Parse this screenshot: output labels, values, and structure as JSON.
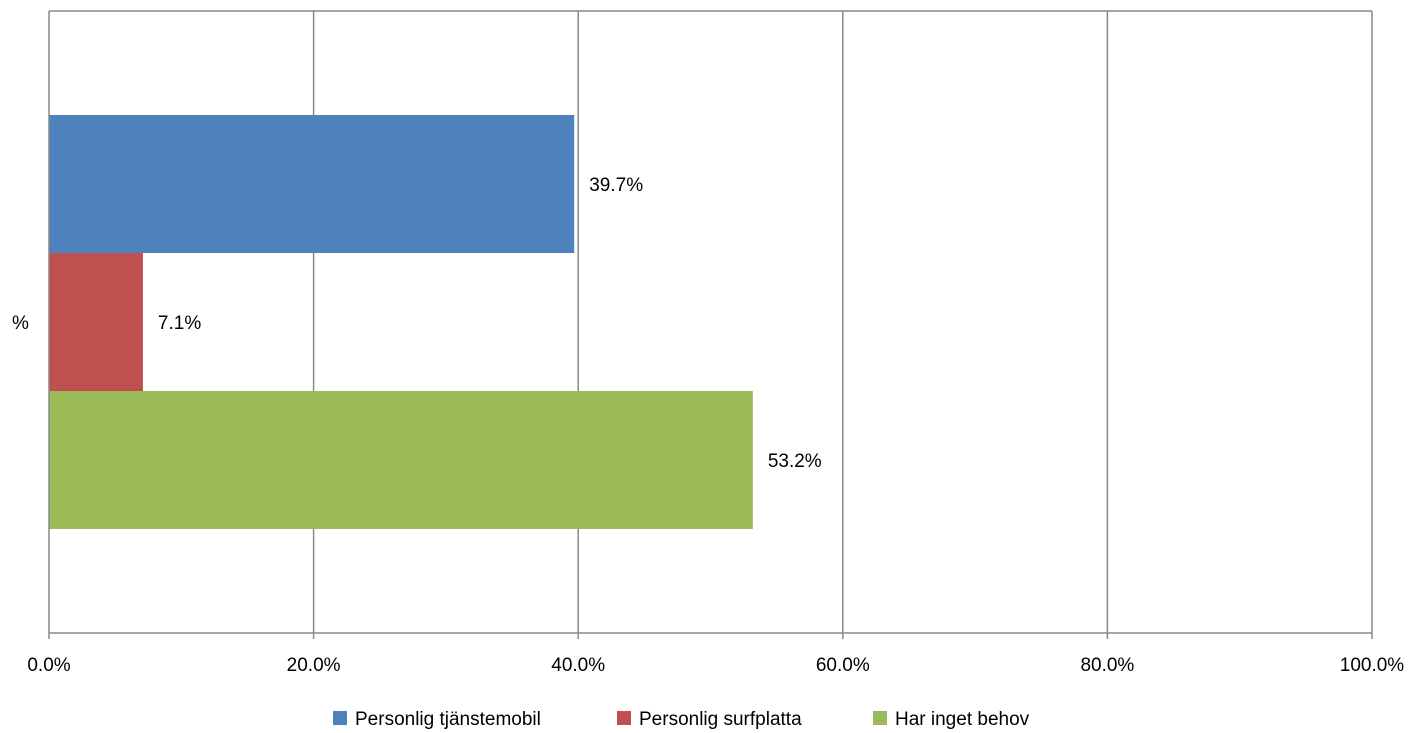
{
  "chart_data": {
    "type": "bar",
    "orientation": "horizontal",
    "categories": [
      "%"
    ],
    "series": [
      {
        "name": "Personlig tjänstemobil",
        "values": [
          39.7
        ],
        "label": "39.7%",
        "color": "#4F81BD"
      },
      {
        "name": "Personlig surfplatta",
        "values": [
          7.1
        ],
        "label": "7.1%",
        "color": "#C0504D"
      },
      {
        "name": "Har inget behov",
        "values": [
          53.2
        ],
        "label": "53.2%",
        "color": "#9BBB59"
      }
    ],
    "xlim": [
      0,
      100
    ],
    "xticks": [
      0,
      20,
      40,
      60,
      80,
      100
    ],
    "xtick_labels": [
      "0.0%",
      "20.0%",
      "40.0%",
      "60.0%",
      "80.0%",
      "100.0%"
    ],
    "grid": true,
    "legend_position": "bottom",
    "title": "",
    "xlabel": "",
    "ylabel": ""
  }
}
